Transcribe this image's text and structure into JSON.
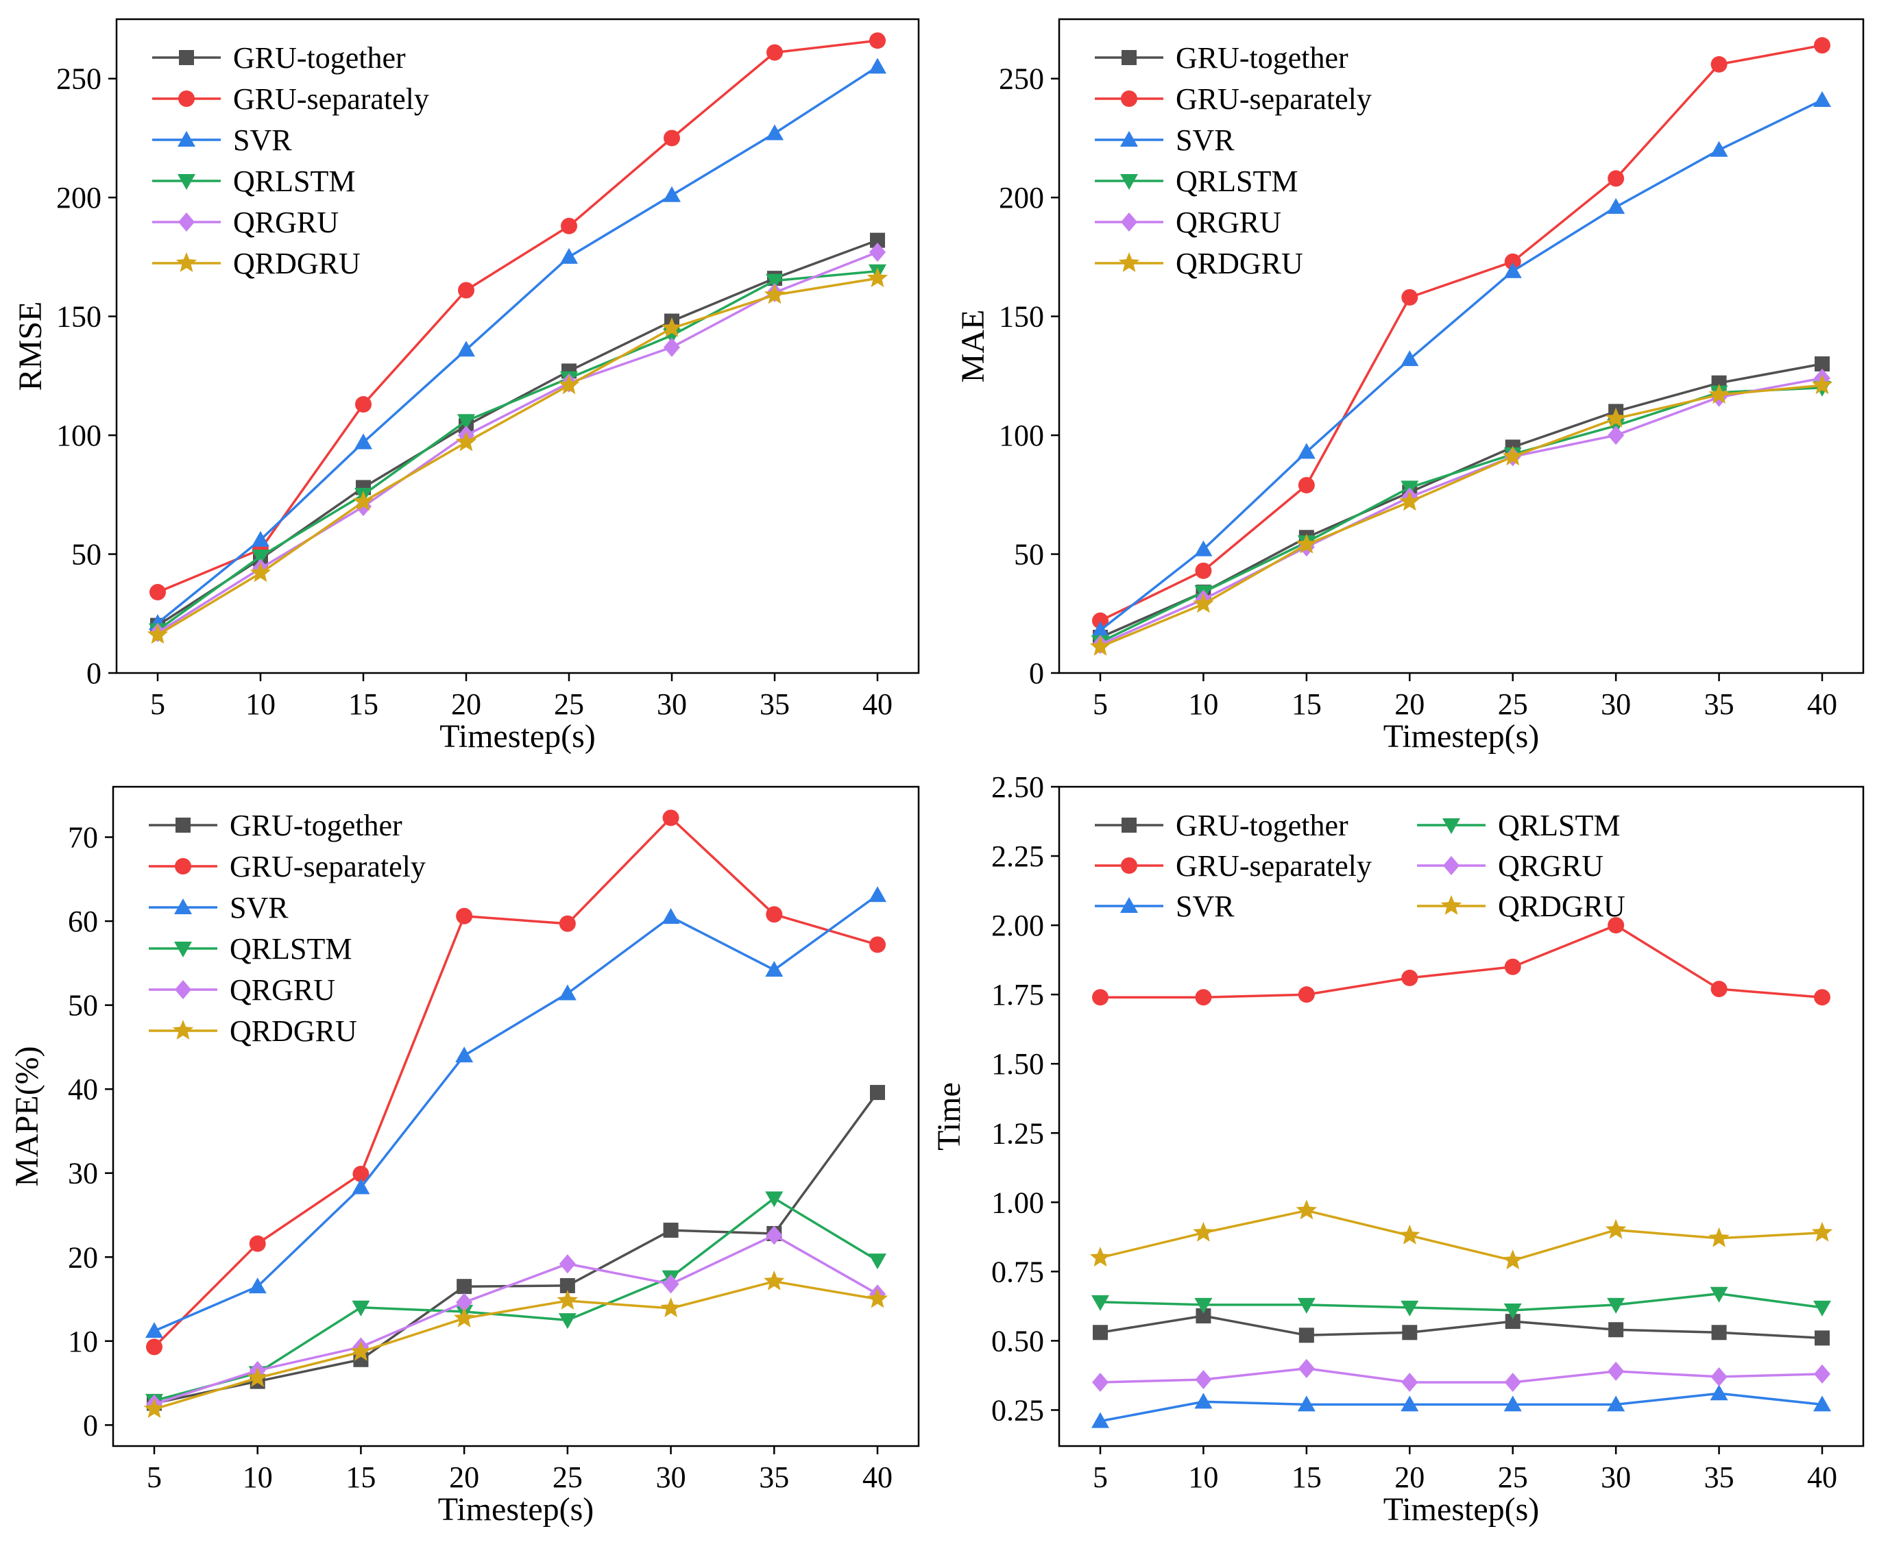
{
  "colors": {
    "GRU-together": "#505050",
    "GRU-separately": "#f03c3c",
    "SVR": "#2f7fe8",
    "QRLSTM": "#22a85a",
    "QRGRU": "#c77ef0",
    "QRDGRU": "#d4a517"
  },
  "markers": {
    "GRU-together": "square",
    "GRU-separately": "circle",
    "SVR": "triangle-up",
    "QRLSTM": "triangle-down",
    "QRGRU": "diamond",
    "QRDGRU": "star"
  },
  "chart_data": [
    {
      "id": "rmse",
      "type": "line",
      "xlabel": "Timestep(s)",
      "ylabel": "RMSE",
      "x": [
        5,
        10,
        15,
        20,
        25,
        30,
        35,
        40
      ],
      "xtick_labels": [
        "5",
        "10",
        "15",
        "20",
        "25",
        "30",
        "35",
        "40"
      ],
      "ylim": [
        0,
        275
      ],
      "yticks": [
        0,
        50,
        100,
        150,
        200,
        250
      ],
      "ytick_labels": [
        "0",
        "50",
        "100",
        "150",
        "200",
        "250"
      ],
      "legend_position": "top-left",
      "legend_columns": 1,
      "series": [
        {
          "name": "GRU-together",
          "values": [
            20,
            48,
            78,
            104,
            127,
            148,
            166,
            182
          ]
        },
        {
          "name": "GRU-separately",
          "values": [
            34,
            52,
            113,
            161,
            188,
            225,
            261,
            266
          ]
        },
        {
          "name": "SVR",
          "values": [
            21,
            56,
            97,
            136,
            175,
            201,
            227,
            255
          ]
        },
        {
          "name": "QRLSTM",
          "values": [
            18,
            49,
            75,
            106,
            124,
            142,
            165,
            169
          ]
        },
        {
          "name": "QRGRU",
          "values": [
            17,
            44,
            70,
            100,
            122,
            137,
            160,
            177
          ]
        },
        {
          "name": "QRDGRU",
          "values": [
            16,
            42,
            72,
            97,
            121,
            145,
            159,
            166
          ]
        }
      ]
    },
    {
      "id": "mae",
      "type": "line",
      "xlabel": "Timestep(s)",
      "ylabel": "MAE",
      "x": [
        5,
        10,
        15,
        20,
        25,
        30,
        35,
        40
      ],
      "xtick_labels": [
        "5",
        "10",
        "15",
        "20",
        "25",
        "30",
        "35",
        "40"
      ],
      "ylim": [
        0,
        275
      ],
      "yticks": [
        0,
        50,
        100,
        150,
        200,
        250
      ],
      "ytick_labels": [
        "0",
        "50",
        "100",
        "150",
        "200",
        "250"
      ],
      "legend_position": "top-left",
      "legend_columns": 1,
      "series": [
        {
          "name": "GRU-together",
          "values": [
            15,
            34,
            57,
            76,
            95,
            110,
            122,
            130
          ]
        },
        {
          "name": "GRU-separately",
          "values": [
            22,
            43,
            79,
            158,
            173,
            208,
            256,
            264
          ]
        },
        {
          "name": "SVR",
          "values": [
            18,
            52,
            93,
            132,
            169,
            196,
            220,
            241
          ]
        },
        {
          "name": "QRLSTM",
          "values": [
            13,
            34,
            55,
            78,
            92,
            104,
            118,
            120
          ]
        },
        {
          "name": "QRGRU",
          "values": [
            12,
            31,
            53,
            74,
            91,
            100,
            116,
            124
          ]
        },
        {
          "name": "QRDGRU",
          "values": [
            11,
            29,
            54,
            72,
            91,
            107,
            117,
            121
          ]
        }
      ]
    },
    {
      "id": "mape",
      "type": "line",
      "xlabel": "Timestep(s)",
      "ylabel": "MAPE(%)",
      "x": [
        5,
        10,
        15,
        20,
        25,
        30,
        35,
        40
      ],
      "xtick_labels": [
        "5",
        "10",
        "15",
        "20",
        "25",
        "30",
        "35",
        "40"
      ],
      "ylim": [
        -2.5,
        76
      ],
      "yticks": [
        0,
        10,
        20,
        30,
        40,
        50,
        60,
        70
      ],
      "ytick_labels": [
        "0",
        "10",
        "20",
        "30",
        "40",
        "50",
        "60",
        "70"
      ],
      "legend_position": "top-left",
      "legend_columns": 1,
      "series": [
        {
          "name": "GRU-together",
          "values": [
            2.6,
            5.2,
            7.8,
            16.5,
            16.6,
            23.2,
            22.8,
            39.6
          ]
        },
        {
          "name": "GRU-separately",
          "values": [
            9.3,
            21.6,
            29.9,
            60.6,
            59.7,
            72.3,
            60.8,
            57.2
          ]
        },
        {
          "name": "SVR",
          "values": [
            11.2,
            16.5,
            28.3,
            44.0,
            51.4,
            60.5,
            54.2,
            63.1
          ]
        },
        {
          "name": "QRLSTM",
          "values": [
            2.9,
            6.2,
            14.0,
            13.5,
            12.5,
            17.6,
            27.0,
            19.6
          ]
        },
        {
          "name": "QRGRU",
          "values": [
            2.5,
            6.5,
            9.3,
            14.6,
            19.2,
            16.8,
            22.6,
            15.6
          ]
        },
        {
          "name": "QRDGRU",
          "values": [
            1.9,
            5.6,
            8.7,
            12.7,
            14.8,
            13.9,
            17.1,
            15.0
          ]
        }
      ]
    },
    {
      "id": "time",
      "type": "line",
      "xlabel": "Timestep(s)",
      "ylabel": "Time",
      "x": [
        5,
        10,
        15,
        20,
        25,
        30,
        35,
        40
      ],
      "xtick_labels": [
        "5",
        "10",
        "15",
        "20",
        "25",
        "30",
        "35",
        "40"
      ],
      "ylim": [
        0.12,
        2.5
      ],
      "yticks": [
        0.25,
        0.5,
        0.75,
        1.0,
        1.25,
        1.5,
        1.75,
        2.0,
        2.25,
        2.5
      ],
      "ytick_labels": [
        "0.25",
        "0.50",
        "0.75",
        "1.00",
        "1.25",
        "1.50",
        "1.75",
        "2.00",
        "2.25",
        "2.50"
      ],
      "legend_position": "top-left",
      "legend_columns": 2,
      "series": [
        {
          "name": "GRU-together",
          "values": [
            0.53,
            0.59,
            0.52,
            0.53,
            0.57,
            0.54,
            0.53,
            0.51
          ]
        },
        {
          "name": "GRU-separately",
          "values": [
            1.74,
            1.74,
            1.75,
            1.81,
            1.85,
            2.0,
            1.77,
            1.74
          ]
        },
        {
          "name": "SVR",
          "values": [
            0.21,
            0.28,
            0.27,
            0.27,
            0.27,
            0.27,
            0.31,
            0.27
          ]
        },
        {
          "name": "QRLSTM",
          "values": [
            0.64,
            0.63,
            0.63,
            0.62,
            0.61,
            0.63,
            0.67,
            0.62
          ]
        },
        {
          "name": "QRGRU",
          "values": [
            0.35,
            0.36,
            0.4,
            0.35,
            0.35,
            0.39,
            0.37,
            0.38
          ]
        },
        {
          "name": "QRDGRU",
          "values": [
            0.8,
            0.89,
            0.97,
            0.88,
            0.79,
            0.9,
            0.87,
            0.89
          ]
        }
      ]
    }
  ]
}
